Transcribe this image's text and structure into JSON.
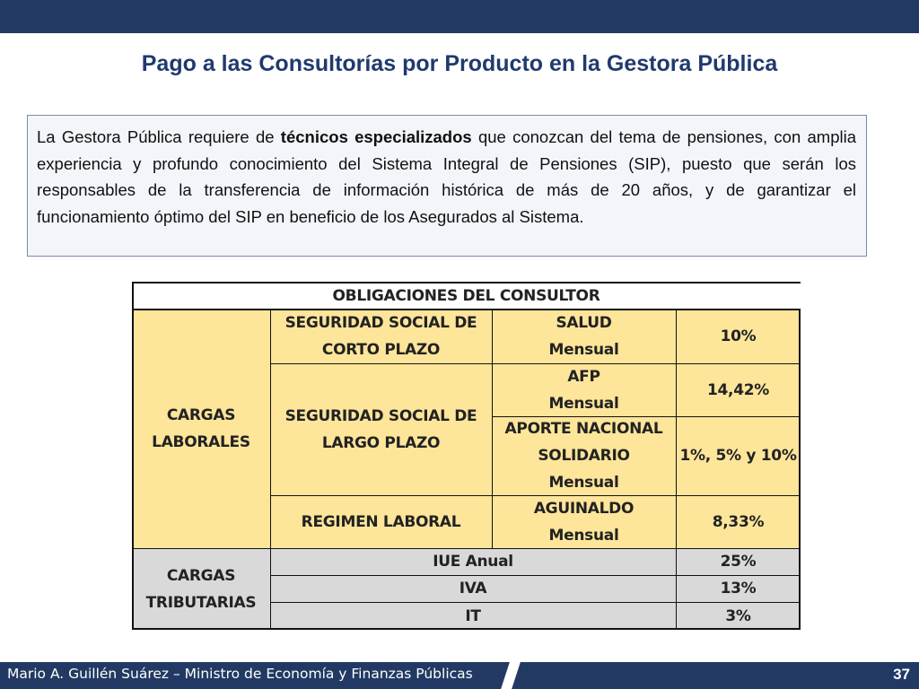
{
  "slide": {
    "title": "Pago a las Consultorías por Producto en la Gestora Pública",
    "paragraph": {
      "before": "La Gestora Pública requiere de ",
      "bold": "técnicos especializados",
      "after": " que conozcan del tema de pensiones, con amplia experiencia y profundo conocimiento del Sistema Integral de Pensiones (SIP), puesto que serán los responsables de la transferencia de información histórica de más de 20 años, y de garantizar el funcionamiento óptimo del SIP en beneficio de los Asegurados al Sistema."
    }
  },
  "table": {
    "header": "OBLIGACIONES DEL CONSULTOR",
    "group1": {
      "label_line1": "CARGAS",
      "label_line2": "LABORALES",
      "fill": "#fde59a",
      "rows": [
        {
          "category_line1": "SEGURIDAD SOCIAL DE",
          "category_line2": "CORTO PLAZO",
          "item_line1": "SALUD",
          "item_line2": "Mensual",
          "rate": "10%"
        },
        {
          "category_line1": "SEGURIDAD SOCIAL DE",
          "category_line2": "LARGO PLAZO",
          "item_line1": "AFP",
          "item_line2": "Mensual",
          "rate": "14,42%"
        },
        {
          "item_line1": "APORTE NACIONAL",
          "item_line2": "SOLIDARIO",
          "item_line3": "Mensual",
          "rate": "1%, 5% y 10%"
        },
        {
          "category": "REGIMEN LABORAL",
          "item_line1": "AGUINALDO",
          "item_line2": "Mensual",
          "rate": "8,33%"
        }
      ]
    },
    "group2": {
      "label_line1": "CARGAS",
      "label_line2": "TRIBUTARIAS",
      "fill": "#d9d9d9",
      "rows": [
        {
          "item": "IUE Anual",
          "rate": "25%"
        },
        {
          "item": "IVA",
          "rate": "13%"
        },
        {
          "item": "IT",
          "rate": "3%"
        }
      ]
    }
  },
  "footer": {
    "author": "Mario A. Guillén Suárez – Ministro de Economía y Finanzas Públicas",
    "page_number": "37"
  },
  "colors": {
    "brand_navy": "#223a63",
    "title_blue": "#1f3a6e"
  }
}
